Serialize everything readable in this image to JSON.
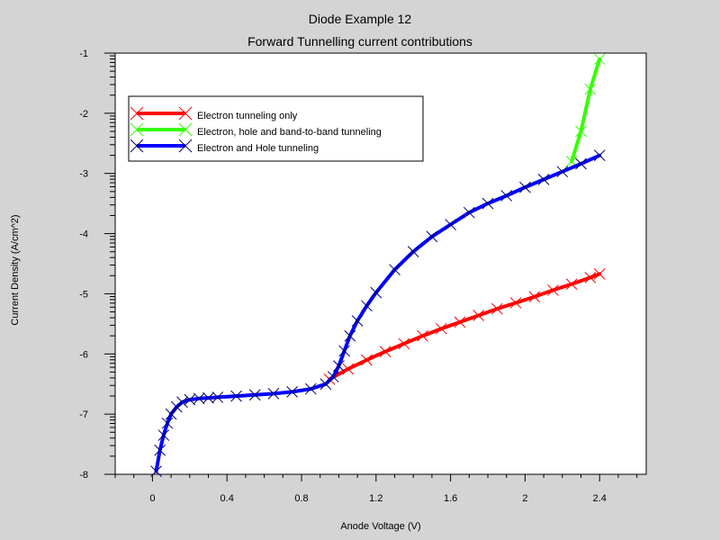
{
  "chart_data": {
    "type": "line",
    "title": "Diode Example 12",
    "subtitle": "Forward Tunnelling current contributions",
    "xlabel": "Anode Voltage (V)",
    "ylabel": "Current Density (A/cm^2)",
    "xlim": [
      -0.2,
      2.65
    ],
    "ylim": [
      -8,
      -1
    ],
    "xticks": [
      "0",
      "0.4",
      "0.8",
      "1.2",
      "1.6",
      "2",
      "2.4"
    ],
    "yticks": [
      "-1",
      "-2",
      "-3",
      "-4",
      "-5",
      "-6",
      "-7",
      "-8"
    ],
    "legend_position": "top-left",
    "grid": false,
    "series": [
      {
        "name": "Electron tunneling only",
        "color": "#ff0000",
        "marker_color": "#ff0000",
        "x": [
          0.95,
          1.05,
          1.15,
          1.25,
          1.35,
          1.45,
          1.55,
          1.65,
          1.75,
          1.85,
          1.95,
          2.05,
          2.15,
          2.25,
          2.35,
          2.4
        ],
        "y": [
          -6.42,
          -6.25,
          -6.1,
          -5.96,
          -5.83,
          -5.7,
          -5.58,
          -5.47,
          -5.36,
          -5.25,
          -5.15,
          -5.05,
          -4.94,
          -4.84,
          -4.73,
          -4.67
        ]
      },
      {
        "name": "Electron, hole and band-to-band tunneling",
        "color": "#33ff00",
        "marker_color": "#33ff00",
        "x": [
          2.25,
          2.3,
          2.35,
          2.4
        ],
        "y": [
          -2.8,
          -2.3,
          -1.6,
          -1.1
        ]
      },
      {
        "name": "Electron and Hole tunneling",
        "color": "#0000ff",
        "marker_color": "#000066",
        "x": [
          0.02,
          0.04,
          0.06,
          0.08,
          0.1,
          0.13,
          0.16,
          0.2,
          0.25,
          0.3,
          0.35,
          0.45,
          0.55,
          0.65,
          0.75,
          0.85,
          0.93,
          0.97,
          1.0,
          1.03,
          1.06,
          1.1,
          1.15,
          1.2,
          1.3,
          1.4,
          1.5,
          1.6,
          1.7,
          1.8,
          1.9,
          2.0,
          2.1,
          2.2,
          2.3,
          2.4
        ],
        "y": [
          -7.95,
          -7.6,
          -7.35,
          -7.15,
          -7.0,
          -6.88,
          -6.8,
          -6.76,
          -6.74,
          -6.73,
          -6.72,
          -6.7,
          -6.68,
          -6.66,
          -6.63,
          -6.58,
          -6.5,
          -6.38,
          -6.2,
          -5.95,
          -5.7,
          -5.45,
          -5.2,
          -4.98,
          -4.6,
          -4.3,
          -4.05,
          -3.85,
          -3.65,
          -3.5,
          -3.37,
          -3.23,
          -3.1,
          -2.97,
          -2.84,
          -2.7
        ]
      }
    ]
  }
}
